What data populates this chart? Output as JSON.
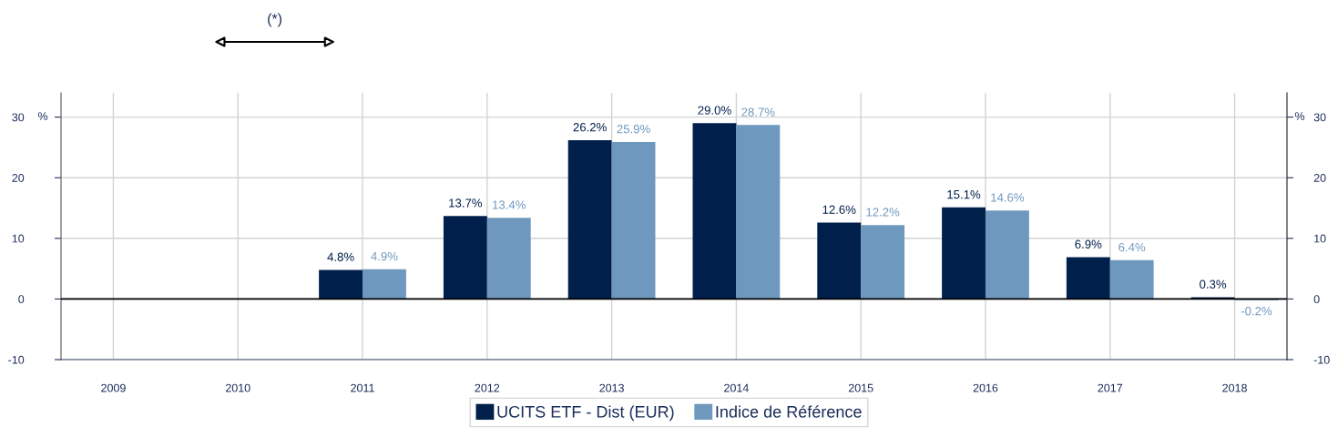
{
  "chart_data": {
    "type": "bar",
    "categories": [
      "2009",
      "2010",
      "2011",
      "2012",
      "2013",
      "2014",
      "2015",
      "2016",
      "2017",
      "2018"
    ],
    "series": [
      {
        "name": "UCITS ETF - Dist (EUR)",
        "color": "#001f4b",
        "values": [
          null,
          null,
          4.8,
          13.7,
          26.2,
          29.0,
          12.6,
          15.1,
          6.9,
          0.3
        ],
        "value_labels": [
          null,
          null,
          "4.8%",
          "13.7%",
          "26.2%",
          "29.0%",
          "12.6%",
          "15.1%",
          "6.9%",
          "0.3%"
        ]
      },
      {
        "name": "Indice de Référence",
        "color": "#6f98be",
        "values": [
          null,
          null,
          4.9,
          13.4,
          25.9,
          28.7,
          12.2,
          14.6,
          6.4,
          -0.2
        ],
        "value_labels": [
          null,
          null,
          "4.9%",
          "13.4%",
          "25.9%",
          "28.7%",
          "12.2%",
          "14.6%",
          "6.4%",
          "-0.2%"
        ]
      }
    ],
    "ylim": [
      -10,
      34
    ],
    "yticks": [
      -10,
      0,
      10,
      20,
      30
    ],
    "ylabel": "%",
    "y2lim": [
      -10,
      34
    ],
    "y2ticks": [
      -10,
      0,
      10,
      20,
      30
    ],
    "y2label": "%",
    "grid": true,
    "legend": "bottom",
    "ref_lines": [
      {
        "axis": "y",
        "value": 0,
        "color": "#000000"
      }
    ],
    "annotations": [
      "(*)"
    ]
  }
}
